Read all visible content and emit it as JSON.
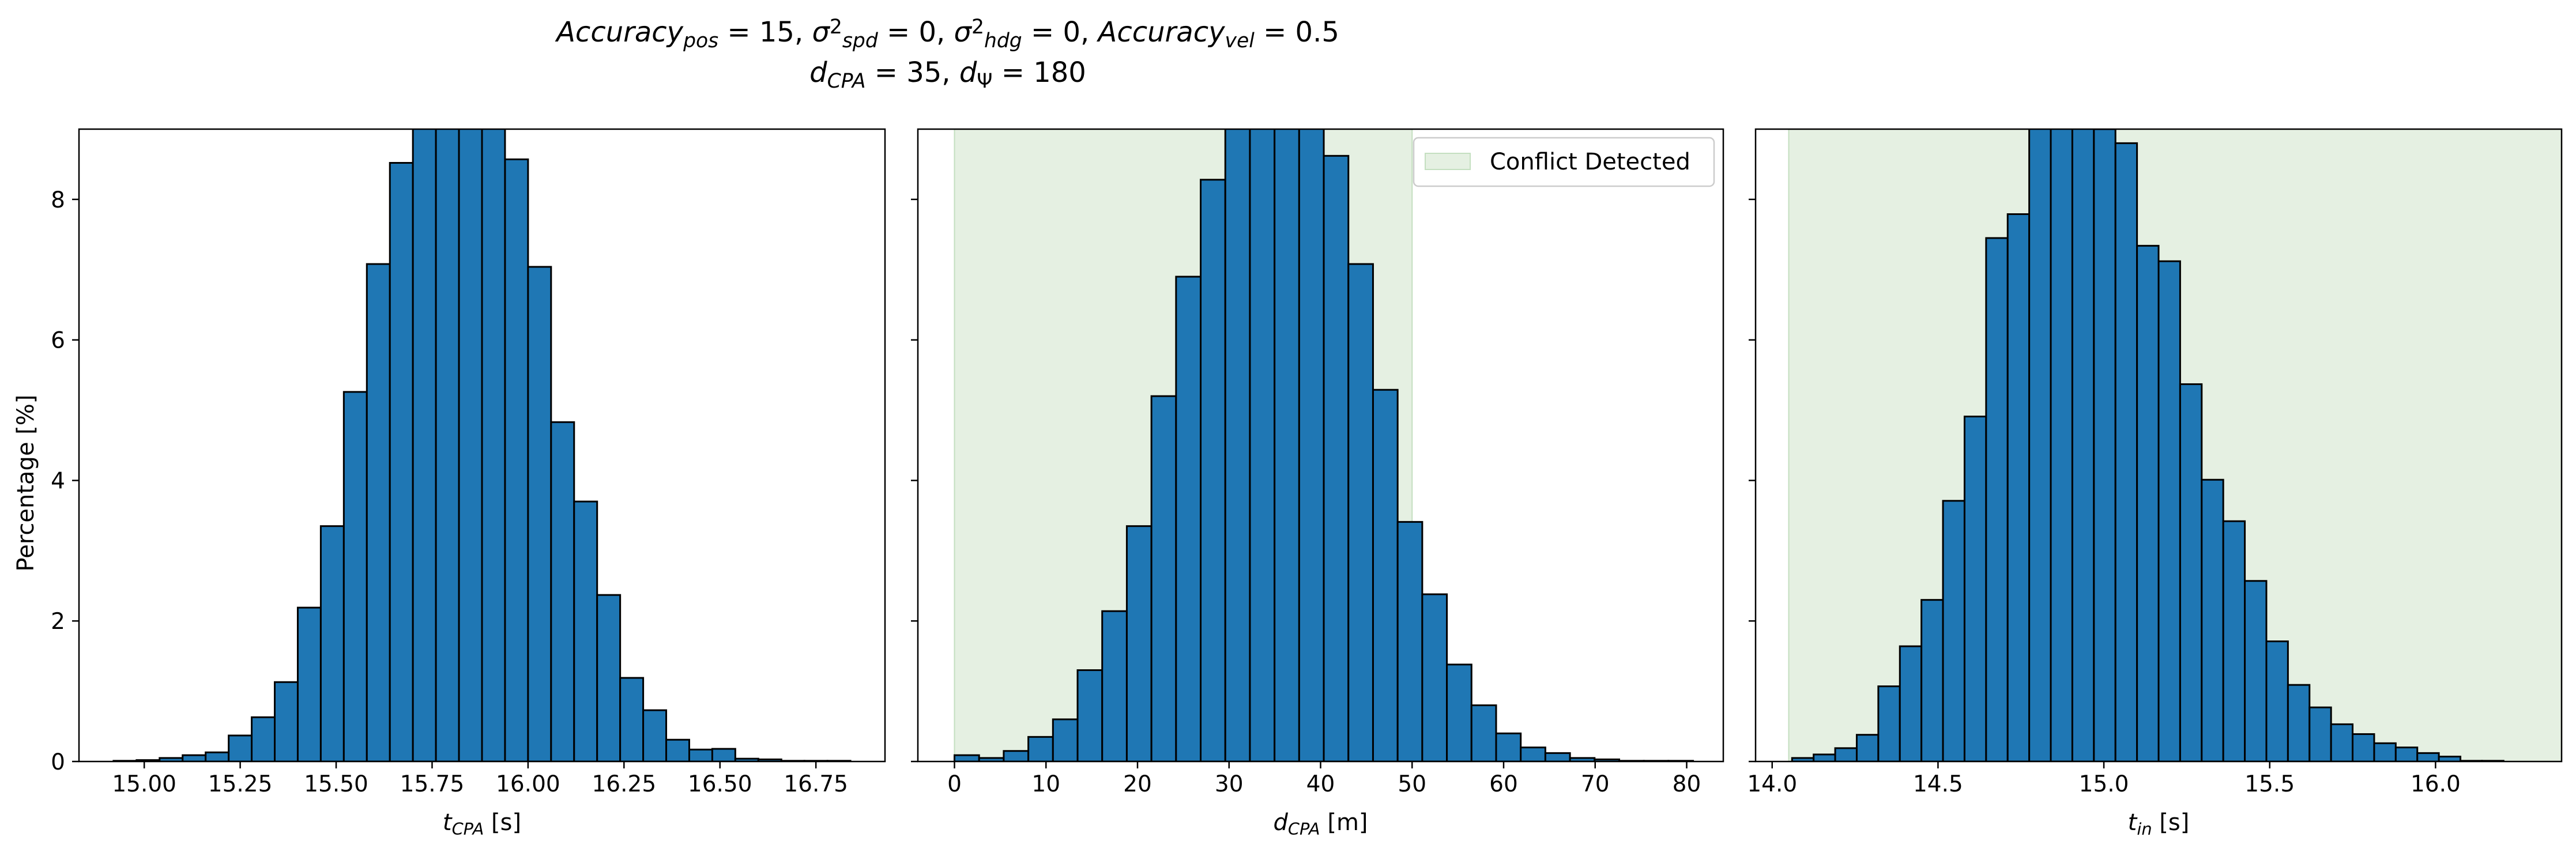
{
  "figure": {
    "title_line1": [
      {
        "t": "Accuracy",
        "i": true
      },
      {
        "t": "pos",
        "i": true,
        "s": "sub"
      },
      {
        "t": " = 15, "
      },
      {
        "t": "σ",
        "i": true
      },
      {
        "t": "2",
        "s": "sup"
      },
      {
        "t": "spd",
        "i": true,
        "s": "sub"
      },
      {
        "t": " = 0, "
      },
      {
        "t": "σ",
        "i": true
      },
      {
        "t": "2",
        "s": "sup"
      },
      {
        "t": "hdg",
        "i": true,
        "s": "sub"
      },
      {
        "t": " = 0, "
      },
      {
        "t": "Accuracy",
        "i": true
      },
      {
        "t": "vel",
        "i": true,
        "s": "sub"
      },
      {
        "t": " = 0.5"
      }
    ],
    "title_line2": [
      {
        "t": "d",
        "i": true
      },
      {
        "t": "CPA",
        "i": true,
        "s": "sub"
      },
      {
        "t": " = 35, "
      },
      {
        "t": "d",
        "i": true
      },
      {
        "t": "Ψ",
        "s": "sub"
      },
      {
        "t": " = 180"
      }
    ],
    "shared_ylabel": "Percentage [%]"
  },
  "chart_data": [
    {
      "type": "bar",
      "xlabel": [
        {
          "t": "t",
          "i": true
        },
        {
          "t": "CPA",
          "i": true,
          "s": "sub"
        },
        {
          "t": " [s]"
        }
      ],
      "xlim": [
        14.83,
        16.93
      ],
      "ylim": [
        0,
        9.0
      ],
      "xticks": [
        15.0,
        15.25,
        15.5,
        15.75,
        16.0,
        16.25,
        16.5,
        16.75
      ],
      "xtick_labels": [
        "15.00",
        "15.25",
        "15.50",
        "15.75",
        "16.00",
        "16.25",
        "16.50",
        "16.75"
      ],
      "yticks": [
        0,
        2,
        4,
        6,
        8
      ],
      "ytick_labels": [
        "0",
        "2",
        "4",
        "6",
        "8"
      ],
      "bin_edges": [
        14.92,
        14.98,
        15.04,
        15.1,
        15.16,
        15.22,
        15.28,
        15.34,
        15.4,
        15.46,
        15.52,
        15.58,
        15.64,
        15.7,
        15.76,
        15.82,
        15.88,
        15.94,
        16.0,
        16.06,
        16.12,
        16.18,
        16.24,
        16.3,
        16.36,
        16.42,
        16.48,
        16.54,
        16.6,
        16.66,
        16.72,
        16.78,
        16.84
      ],
      "values": [
        0.01,
        0.02,
        0.05,
        0.09,
        0.13,
        0.37,
        0.63,
        1.13,
        2.19,
        3.35,
        5.26,
        7.08,
        8.52,
        9.4,
        9.5,
        9.5,
        9.5,
        8.57,
        7.04,
        4.83,
        3.7,
        2.37,
        1.19,
        0.73,
        0.31,
        0.17,
        0.18,
        0.04,
        0.03,
        0.01,
        0.01,
        0.01
      ]
    },
    {
      "type": "bar",
      "xlabel": [
        {
          "t": "d",
          "i": true
        },
        {
          "t": "CPA",
          "i": true,
          "s": "sub"
        },
        {
          "t": " [m]"
        }
      ],
      "xlim": [
        -4.0,
        84.0
      ],
      "ylim": [
        0,
        9.0
      ],
      "xticks": [
        0,
        10,
        20,
        30,
        40,
        50,
        60,
        70,
        80
      ],
      "xtick_labels": [
        "0",
        "10",
        "20",
        "30",
        "40",
        "50",
        "60",
        "70",
        "80"
      ],
      "yticks": [
        0,
        2,
        4,
        6,
        8
      ],
      "ytick_labels": [
        "",
        "",
        "",
        "",
        ""
      ],
      "shaded_region": [
        0,
        50
      ],
      "legend": {
        "label": "Conflict Detected",
        "position": "upper right",
        "color": "#e5f0e2"
      },
      "bin_edges": [
        0,
        2.69,
        5.38,
        8.07,
        10.76,
        13.45,
        16.14,
        18.83,
        21.52,
        24.21,
        26.9,
        29.59,
        32.28,
        34.97,
        37.66,
        40.35,
        43.04,
        45.73,
        48.42,
        51.11,
        53.8,
        56.49,
        59.18,
        61.87,
        64.56,
        67.25,
        69.94,
        72.63,
        75.32,
        78.01,
        80.7
      ],
      "values": [
        0.09,
        0.05,
        0.15,
        0.35,
        0.6,
        1.3,
        2.14,
        3.35,
        5.2,
        6.9,
        8.28,
        9.5,
        9.5,
        9.5,
        9.5,
        8.62,
        7.08,
        5.29,
        3.41,
        2.38,
        1.38,
        0.8,
        0.4,
        0.2,
        0.12,
        0.05,
        0.03,
        0.01,
        0.01,
        0.01
      ]
    },
    {
      "type": "bar",
      "xlabel": [
        {
          "t": "t",
          "i": true
        },
        {
          "t": "in",
          "i": true,
          "s": "sub"
        },
        {
          "t": " [s]"
        }
      ],
      "xlim": [
        13.95,
        16.38
      ],
      "ylim": [
        0,
        9.0
      ],
      "xticks": [
        14.0,
        14.5,
        15.0,
        15.5,
        16.0
      ],
      "xtick_labels": [
        "14.0",
        "14.5",
        "15.0",
        "15.5",
        "16.0"
      ],
      "yticks": [
        0,
        2,
        4,
        6,
        8
      ],
      "ytick_labels": [
        "",
        "",
        "",
        "",
        ""
      ],
      "shaded_region": [
        14.05,
        16.38
      ],
      "bin_edges": [
        14.06,
        14.125,
        14.19,
        14.255,
        14.32,
        14.385,
        14.45,
        14.515,
        14.58,
        14.645,
        14.71,
        14.775,
        14.84,
        14.905,
        14.97,
        15.035,
        15.1,
        15.165,
        15.23,
        15.295,
        15.36,
        15.425,
        15.49,
        15.555,
        15.62,
        15.685,
        15.75,
        15.815,
        15.88,
        15.945,
        16.01,
        16.075,
        16.14,
        16.205
      ],
      "values": [
        0.05,
        0.1,
        0.19,
        0.38,
        1.07,
        1.64,
        2.3,
        3.71,
        4.91,
        7.45,
        7.79,
        9.5,
        9.5,
        9.5,
        9.0,
        8.8,
        7.34,
        7.12,
        5.37,
        4.01,
        3.42,
        2.57,
        1.71,
        1.09,
        0.77,
        0.53,
        0.39,
        0.26,
        0.2,
        0.12,
        0.07,
        0.01,
        0.01
      ]
    }
  ],
  "colors": {
    "bar": "#1f77b4",
    "edge": "#000000",
    "shade": "#e5f0e2"
  }
}
